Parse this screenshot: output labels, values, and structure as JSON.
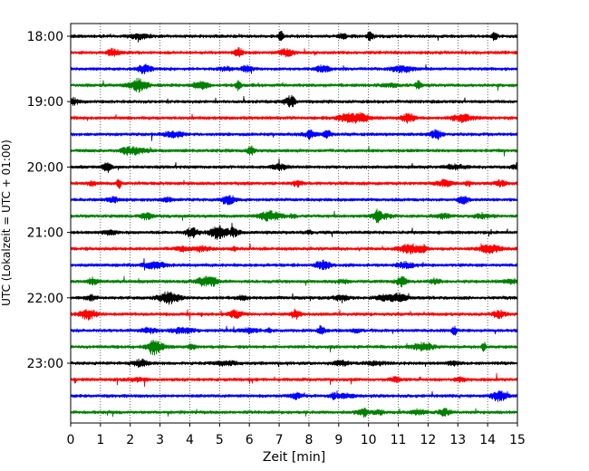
{
  "chart_data": {
    "type": "line",
    "title": "",
    "xlabel": "Zeit  [min]",
    "ylabel": "UTC (Lokalzeit = UTC + 01:00)",
    "xlim": [
      0,
      15
    ],
    "x_ticks": [
      0,
      1,
      2,
      3,
      4,
      5,
      6,
      7,
      8,
      9,
      10,
      11,
      12,
      13,
      14,
      15
    ],
    "y_tick_labels": [
      "18:00",
      "19:00",
      "20:00",
      "21:00",
      "22:00",
      "23:00"
    ],
    "grid": "vertical dotted",
    "legend": "none",
    "trace_colors_cycle": [
      "#000000",
      "#ff0000",
      "#0000ff",
      "#008000"
    ],
    "series": [
      {
        "start": "18:00",
        "color": "#000000"
      },
      {
        "start": "18:15",
        "color": "#ff0000"
      },
      {
        "start": "18:30",
        "color": "#0000ff"
      },
      {
        "start": "18:45",
        "color": "#008000"
      },
      {
        "start": "19:00",
        "color": "#000000"
      },
      {
        "start": "19:15",
        "color": "#ff0000"
      },
      {
        "start": "19:30",
        "color": "#0000ff"
      },
      {
        "start": "19:45",
        "color": "#008000"
      },
      {
        "start": "20:00",
        "color": "#000000"
      },
      {
        "start": "20:15",
        "color": "#ff0000"
      },
      {
        "start": "20:30",
        "color": "#0000ff"
      },
      {
        "start": "20:45",
        "color": "#008000"
      },
      {
        "start": "21:00",
        "color": "#000000"
      },
      {
        "start": "21:15",
        "color": "#ff0000"
      },
      {
        "start": "21:30",
        "color": "#0000ff"
      },
      {
        "start": "21:45",
        "color": "#008000"
      },
      {
        "start": "22:00",
        "color": "#000000"
      },
      {
        "start": "22:15",
        "color": "#ff0000"
      },
      {
        "start": "22:30",
        "color": "#0000ff"
      },
      {
        "start": "22:45",
        "color": "#008000"
      },
      {
        "start": "23:00",
        "color": "#000000"
      },
      {
        "start": "23:15",
        "color": "#ff0000"
      },
      {
        "start": "23:30",
        "color": "#0000ff"
      },
      {
        "start": "23:45",
        "color": "#008000"
      }
    ]
  }
}
